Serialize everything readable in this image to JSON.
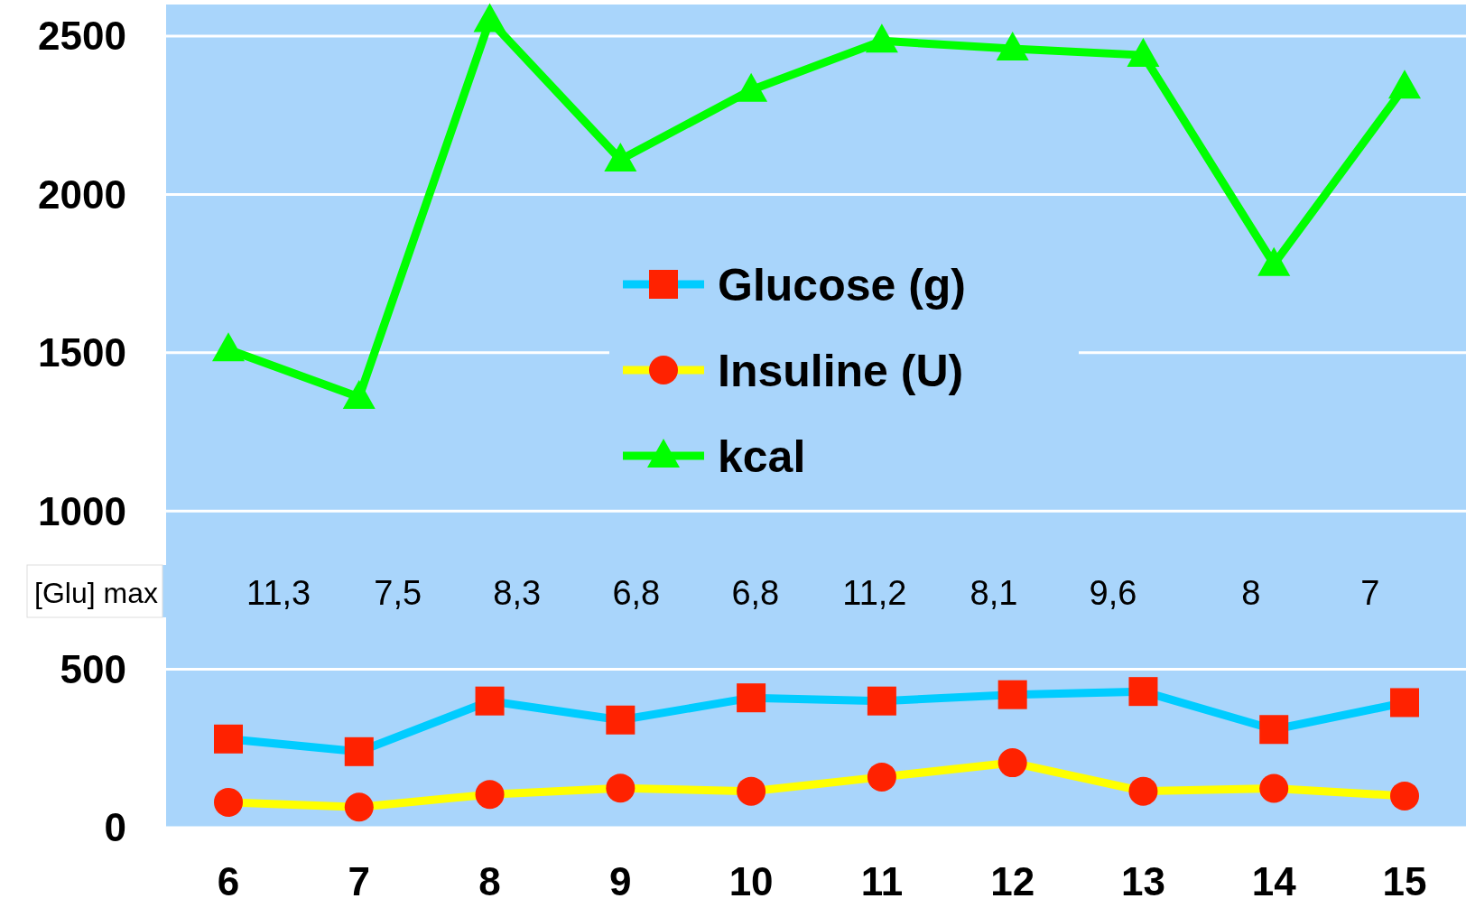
{
  "chart_data": {
    "type": "line",
    "categories": [
      "6",
      "7",
      "8",
      "9",
      "10",
      "11",
      "12",
      "13",
      "14",
      "15"
    ],
    "series": [
      {
        "name": "Glucose (g)",
        "color": "#00ccff",
        "colors": [
          "#ff2200",
          "#ff2200",
          "#ff2200",
          "#ff2200",
          "#ff2200",
          "#ff2200",
          "#ff2200",
          "#ff2200",
          "#ff2200",
          "#ff2200"
        ],
        "marker": "square",
        "values": [
          280,
          240,
          400,
          340,
          410,
          400,
          420,
          430,
          310,
          395
        ]
      },
      {
        "name": "Insuline (U)",
        "color": "#ffff00",
        "colors": [
          "#ff2200",
          "#ff2200",
          "#ff2200",
          "#ff2200",
          "#ff2200",
          "#ff2200",
          "#ff2200",
          "#ff2200",
          "#ff2200",
          "#ff2200"
        ],
        "marker": "circle",
        "values": [
          80,
          65,
          105,
          125,
          115,
          160,
          205,
          115,
          124,
          100
        ]
      },
      {
        "name": "kcal",
        "color": "#00ff00",
        "marker": "triangle",
        "values": [
          1510,
          1360,
          2550,
          2110,
          2330,
          2485,
          2460,
          2440,
          1780,
          2340
        ]
      }
    ],
    "ylim": [
      0,
      2600
    ],
    "yticks": [
      0,
      500,
      1000,
      1500,
      2000,
      2500
    ],
    "grid": "y",
    "legend": "center",
    "annotations": [
      "[Glu] max",
      "11,3",
      "7,5",
      "8,3",
      "6,8",
      "6,8",
      "11,2",
      "8,1",
      "9,6",
      "8",
      "7"
    ]
  }
}
